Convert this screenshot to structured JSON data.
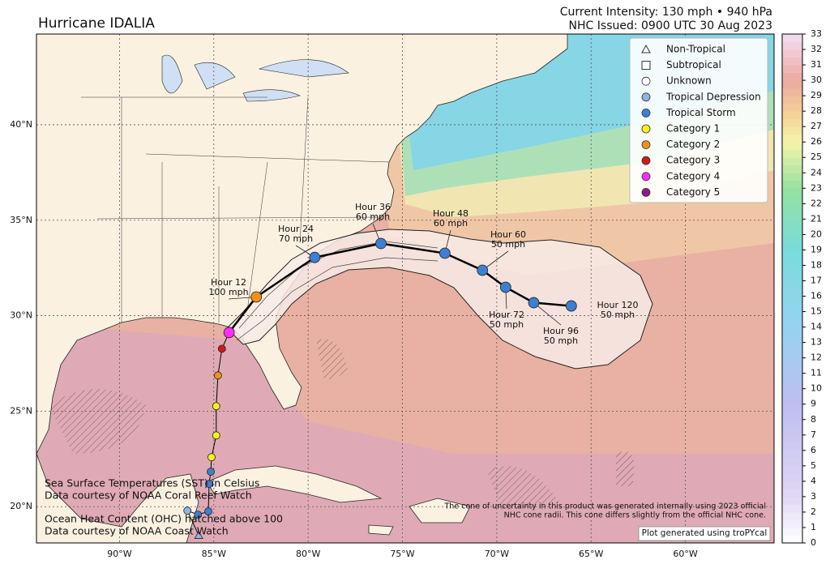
{
  "chart_data": {
    "type": "map",
    "title": "Hurricane IDALIA",
    "intensity": "Current Intensity: 130 mph • 940 hPa",
    "issued": "NHC Issued: 0900 UTC 30 Aug 2023",
    "xlim": [
      -94.4,
      -55.3
    ],
    "ylim": [
      18.1,
      44.75
    ],
    "xticks": [
      {
        "value": -90,
        "label": "90°W"
      },
      {
        "value": -85,
        "label": "85°W"
      },
      {
        "value": -80,
        "label": "80°W"
      },
      {
        "value": -75,
        "label": "75°W"
      },
      {
        "value": -70,
        "label": "70°W"
      },
      {
        "value": -65,
        "label": "65°W"
      },
      {
        "value": -60,
        "label": "60°W"
      }
    ],
    "yticks": [
      {
        "value": 20,
        "label": "20°N"
      },
      {
        "value": 25,
        "label": "25°N"
      },
      {
        "value": 30,
        "label": "30°N"
      },
      {
        "value": 35,
        "label": "35°N"
      },
      {
        "value": 40,
        "label": "40°N"
      }
    ],
    "grid": true,
    "legend": [
      {
        "name": "Non-Tropical",
        "marker": "triangle",
        "color": "#ffffff"
      },
      {
        "name": "Subtropical",
        "marker": "square",
        "color": "#ffffff"
      },
      {
        "name": "Unknown",
        "marker": "circle",
        "color": "#ffffff"
      },
      {
        "name": "Tropical Depression",
        "marker": "circle",
        "color": "#8cb6e3"
      },
      {
        "name": "Tropical Storm",
        "marker": "circle",
        "color": "#3d7fd1"
      },
      {
        "name": "Category 1",
        "marker": "circle",
        "color": "#f6f01c"
      },
      {
        "name": "Category 2",
        "marker": "circle",
        "color": "#f0901c"
      },
      {
        "name": "Category 3",
        "marker": "circle",
        "color": "#d41818"
      },
      {
        "name": "Category 4",
        "marker": "circle",
        "color": "#ff2bff"
      },
      {
        "name": "Category 5",
        "marker": "circle",
        "color": "#8b1b8b"
      }
    ],
    "past_track": {
      "x": [
        -85.8,
        -86.4,
        -85.84,
        -85.29,
        -85.25,
        -85.16,
        -85.12,
        -84.87,
        -84.87,
        -84.78,
        -84.57,
        -84.19
      ],
      "y": [
        18.5,
        19.79,
        19.58,
        19.75,
        21.19,
        21.83,
        22.59,
        23.73,
        25.26,
        26.87,
        28.27,
        29.12
      ],
      "markers": [
        "triangle",
        "circle",
        "circle",
        "circle",
        "circle",
        "circle",
        "circle",
        "circle",
        "circle",
        "circle",
        "circle",
        "circle"
      ],
      "colors": [
        "#8cb6e3",
        "#8cb6e3",
        "#3d7fd1",
        "#3d7fd1",
        "#3d7fd1",
        "#3d7fd1",
        "#f6f01c",
        "#f6f01c",
        "#f6f01c",
        "#f0901c",
        "#d41818",
        "#ff2bff"
      ]
    },
    "forecast_track": {
      "x": [
        -84.19,
        -82.75,
        -79.65,
        -76.14,
        -72.75,
        -70.76,
        -69.53,
        -68.04,
        -66.05
      ],
      "y": [
        29.12,
        30.98,
        33.05,
        33.78,
        33.27,
        32.38,
        31.49,
        30.68,
        30.51
      ],
      "colors": [
        "#ff2bff",
        "#f0901c",
        "#3d7fd1",
        "#3d7fd1",
        "#3d7fd1",
        "#3d7fd1",
        "#3d7fd1",
        "#3d7fd1",
        "#3d7fd1"
      ]
    },
    "forecast_labels": [
      {
        "hour": "Hour 12",
        "wind": "100 mph"
      },
      {
        "hour": "Hour 24",
        "wind": "70 mph"
      },
      {
        "hour": "Hour 36",
        "wind": "60 mph"
      },
      {
        "hour": "Hour 48",
        "wind": "60 mph"
      },
      {
        "hour": "Hour 60",
        "wind": "50 mph"
      },
      {
        "hour": "Hour 72",
        "wind": "50 mph"
      },
      {
        "hour": "Hour 96",
        "wind": "50 mph"
      },
      {
        "hour": "Hour 120",
        "wind": "50 mph"
      }
    ],
    "notes_left": [
      "Sea Surface Temperatures (SST) in Celsius",
      "Data courtesy of NOAA Coral Reef Watch",
      "Ocean Heat Content (OHC) hatched above 100",
      "Data courtesy of NOAA Coast Watch"
    ],
    "notes_right": [
      "The cone of uncertainty in this product was generated internally using 2023 official",
      "NHC cone radii. This cone differs slightly from the official NHC cone."
    ],
    "credit": "Plot generated using troPYcal",
    "colorbar": {
      "lim": [
        0,
        33
      ],
      "ticks": [
        0,
        1,
        2,
        3,
        4,
        5,
        6,
        7,
        8,
        9,
        10,
        11,
        12,
        13,
        14,
        15,
        16,
        17,
        18,
        19,
        20,
        21,
        22,
        23,
        24,
        25,
        26,
        27,
        28,
        29,
        30,
        31,
        32,
        33
      ]
    }
  }
}
